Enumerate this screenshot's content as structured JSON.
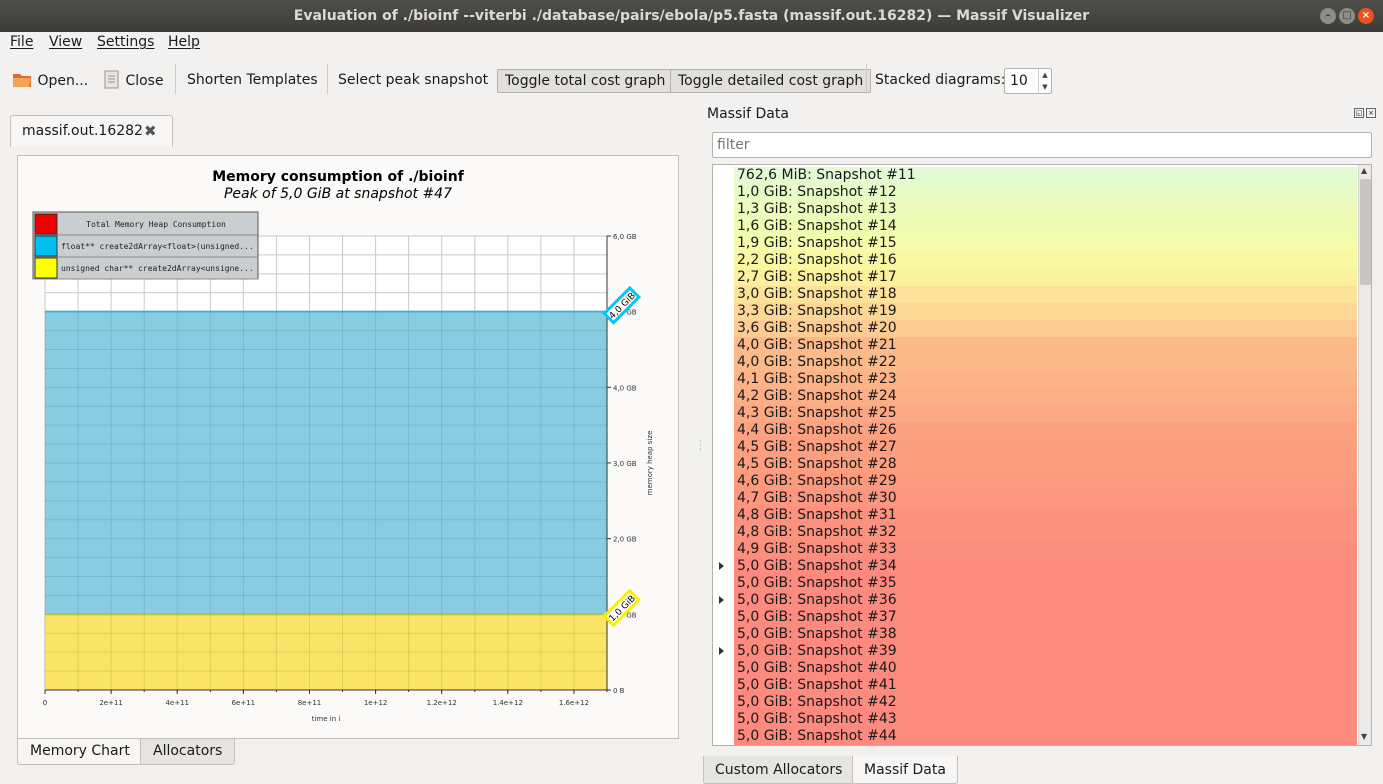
{
  "window": {
    "title": "Evaluation of ./bioinf --viterbi ./database/pairs/ebola/p5.fasta (massif.out.16282) — Massif Visualizer"
  },
  "menu": {
    "file": "File",
    "view": "View",
    "settings": "Settings",
    "help": "Help"
  },
  "toolbar": {
    "open": "Open...",
    "close": "Close",
    "shorten_templates": "Shorten Templates",
    "select_peak": "Select peak snapshot",
    "toggle_total": "Toggle total cost graph",
    "toggle_detailed": "Toggle detailed cost graph",
    "stacked_label": "Stacked diagrams:",
    "stacked_value": "10"
  },
  "file_tab": {
    "label": "massif.out.16282"
  },
  "bottom_tabs": {
    "memory_chart": "Memory Chart",
    "allocators": "Allocators"
  },
  "dock": {
    "title": "Massif Data",
    "filter_placeholder": "filter"
  },
  "right_tabs": {
    "custom_allocators": "Custom Allocators",
    "massif_data": "Massif Data"
  },
  "chart_data": {
    "type": "area",
    "title": "Memory consumption of ./bioinf",
    "subtitle": "Peak of 5,0 GiB at snapshot #47",
    "xlabel": "time in i",
    "ylabel": "memory heap size",
    "x_ticks": [
      "0",
      "2e+11",
      "4e+11",
      "6e+11",
      "8e+11",
      "1e+12",
      "1.2e+12",
      "1.4e+12",
      "1.6e+12"
    ],
    "x_tick_values": [
      0,
      200000000000.0,
      400000000000.0,
      600000000000.0,
      800000000000.0,
      1000000000000.0,
      1200000000000.0,
      1400000000000.0,
      1600000000000.0
    ],
    "xlim": [
      0,
      1700000000000.0
    ],
    "y_ticks": [
      "0 B",
      "1,0 GB",
      "2,0 GB",
      "3,0 GB",
      "4,0 GB",
      "5,0 GB",
      "6,0 GB"
    ],
    "y_tick_values": [
      0,
      1,
      2,
      3,
      4,
      5,
      6
    ],
    "ylim": [
      0,
      6
    ],
    "grid": true,
    "legend_position": "top-left",
    "legend": [
      {
        "name": "Total Memory Heap Consumption",
        "color": "#ee0000"
      },
      {
        "name": "float** create2dArray<float>(unsigned...",
        "color": "#00c0f0"
      },
      {
        "name": "unsigned char** create2dArray<unsigne...",
        "color": "#ffff00"
      }
    ],
    "series": [
      {
        "name": "unsigned char** create2dArray<unsigne...",
        "color": "#f8e25a",
        "x": [
          0,
          1700000000000.0
        ],
        "values": [
          1.0,
          1.0
        ]
      },
      {
        "name": "float** create2dArray<float>(unsigned...",
        "color": "#7ec8e0",
        "x": [
          0,
          1700000000000.0
        ],
        "values": [
          4.0,
          4.0
        ]
      }
    ],
    "annotations": [
      {
        "text": "1,0 GiB",
        "y": 1.0,
        "color": "#f8f000"
      },
      {
        "text": "4,0 GiB",
        "y": 5.0,
        "color": "#00c8f0"
      }
    ]
  },
  "snapshots": [
    {
      "label": "762,6 MiB: Snapshot #11",
      "color": "#e3fbd2",
      "expandable": false
    },
    {
      "label": "1,0 GiB: Snapshot #12",
      "color": "#e6fbc6",
      "expandable": false
    },
    {
      "label": "1,3 GiB: Snapshot #13",
      "color": "#ecfbbc",
      "expandable": false
    },
    {
      "label": "1,6 GiB: Snapshot #14",
      "color": "#f0fbb2",
      "expandable": false
    },
    {
      "label": "1,9 GiB: Snapshot #15",
      "color": "#f4fbaa",
      "expandable": false
    },
    {
      "label": "2,2 GiB: Snapshot #16",
      "color": "#f9f8a2",
      "expandable": false
    },
    {
      "label": "2,7 GiB: Snapshot #17",
      "color": "#fbf09c",
      "expandable": false
    },
    {
      "label": "3,0 GiB: Snapshot #18",
      "color": "#fce29a",
      "expandable": false
    },
    {
      "label": "3,3 GiB: Snapshot #19",
      "color": "#fcd796",
      "expandable": false
    },
    {
      "label": "3,6 GiB: Snapshot #20",
      "color": "#fccc92",
      "expandable": false
    },
    {
      "label": "4,0 GiB: Snapshot #21",
      "color": "#fcb98a",
      "expandable": false
    },
    {
      "label": "4,0 GiB: Snapshot #22",
      "color": "#fcb98a",
      "expandable": false
    },
    {
      "label": "4,1 GiB: Snapshot #23",
      "color": "#fcb388",
      "expandable": false
    },
    {
      "label": "4,2 GiB: Snapshot #24",
      "color": "#fcae86",
      "expandable": false
    },
    {
      "label": "4,3 GiB: Snapshot #25",
      "color": "#fca884",
      "expandable": false
    },
    {
      "label": "4,4 GiB: Snapshot #26",
      "color": "#fca282",
      "expandable": false
    },
    {
      "label": "4,5 GiB: Snapshot #27",
      "color": "#fc9e80",
      "expandable": false
    },
    {
      "label": "4,5 GiB: Snapshot #28",
      "color": "#fc9e80",
      "expandable": false
    },
    {
      "label": "4,6 GiB: Snapshot #29",
      "color": "#fc9a7e",
      "expandable": false
    },
    {
      "label": "4,7 GiB: Snapshot #30",
      "color": "#fc967e",
      "expandable": false
    },
    {
      "label": "4,8 GiB: Snapshot #31",
      "color": "#fc927e",
      "expandable": false
    },
    {
      "label": "4,8 GiB: Snapshot #32",
      "color": "#fc927e",
      "expandable": false
    },
    {
      "label": "4,9 GiB: Snapshot #33",
      "color": "#fc8e7e",
      "expandable": false
    },
    {
      "label": "5,0 GiB: Snapshot #34",
      "color": "#fc8a7e",
      "expandable": true
    },
    {
      "label": "5,0 GiB: Snapshot #35",
      "color": "#fc8a7e",
      "expandable": false
    },
    {
      "label": "5,0 GiB: Snapshot #36",
      "color": "#fc8a7e",
      "expandable": true
    },
    {
      "label": "5,0 GiB: Snapshot #37",
      "color": "#fc8a7e",
      "expandable": false
    },
    {
      "label": "5,0 GiB: Snapshot #38",
      "color": "#fc8a7e",
      "expandable": false
    },
    {
      "label": "5,0 GiB: Snapshot #39",
      "color": "#fc8a7e",
      "expandable": true
    },
    {
      "label": "5,0 GiB: Snapshot #40",
      "color": "#fc8a7e",
      "expandable": false
    },
    {
      "label": "5,0 GiB: Snapshot #41",
      "color": "#fc8a7e",
      "expandable": false
    },
    {
      "label": "5,0 GiB: Snapshot #42",
      "color": "#fc8a7e",
      "expandable": false
    },
    {
      "label": "5,0 GiB: Snapshot #43",
      "color": "#fc8a7e",
      "expandable": false
    },
    {
      "label": "5,0 GiB: Snapshot #44",
      "color": "#fc8a7e",
      "expandable": false
    }
  ]
}
